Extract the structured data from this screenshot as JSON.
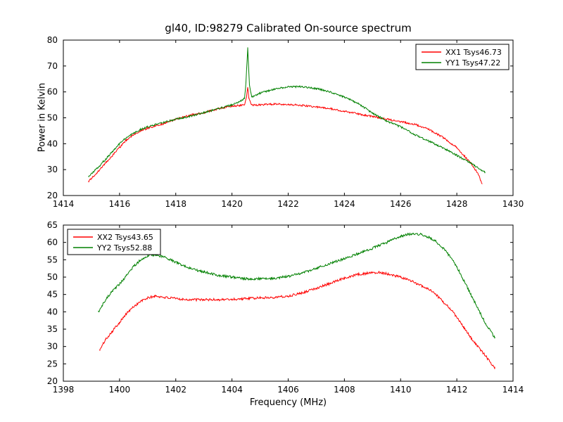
{
  "figure": {
    "background": "#ffffff",
    "title": "gl40, ID:98279 Calibrated On-source spectrum"
  },
  "chart_data": [
    {
      "type": "line",
      "name": "top-subplot",
      "title": "gl40, ID:98279 Calibrated On-source spectrum",
      "xlabel": "",
      "ylabel": "Power in Kelvin",
      "xlim": [
        1414,
        1430
      ],
      "ylim": [
        20,
        80
      ],
      "xticks": [
        1414,
        1416,
        1418,
        1420,
        1422,
        1424,
        1426,
        1428,
        1430
      ],
      "yticks": [
        20,
        30,
        40,
        50,
        60,
        70,
        80
      ],
      "grid": false,
      "legend": {
        "position": "upper right",
        "entries": [
          "XX1 Tsys46.73",
          "YY1 Tsys47.22"
        ]
      },
      "series": [
        {
          "name": "XX1 Tsys46.73",
          "color": "#ff0000",
          "points": [
            [
              1414.9,
              25.5
            ],
            [
              1415.0,
              26.5
            ],
            [
              1415.25,
              29.5
            ],
            [
              1415.5,
              32.5
            ],
            [
              1415.75,
              35.5
            ],
            [
              1416.0,
              38.5
            ],
            [
              1416.25,
              41.5
            ],
            [
              1416.5,
              43.5
            ],
            [
              1416.75,
              45.0
            ],
            [
              1417.0,
              46.0
            ],
            [
              1417.5,
              47.5
            ],
            [
              1418.0,
              49.5
            ],
            [
              1418.5,
              51.0
            ],
            [
              1419.0,
              52.0
            ],
            [
              1419.5,
              53.5
            ],
            [
              1420.0,
              54.5
            ],
            [
              1420.3,
              54.8
            ],
            [
              1420.45,
              55.0
            ],
            [
              1420.52,
              58.0
            ],
            [
              1420.56,
              62.0
            ],
            [
              1420.6,
              57.5
            ],
            [
              1420.7,
              55.0
            ],
            [
              1421.0,
              55.0
            ],
            [
              1421.5,
              55.3
            ],
            [
              1422.0,
              55.2
            ],
            [
              1422.5,
              54.8
            ],
            [
              1423.0,
              54.2
            ],
            [
              1423.5,
              53.5
            ],
            [
              1424.0,
              52.5
            ],
            [
              1424.5,
              51.5
            ],
            [
              1425.0,
              50.5
            ],
            [
              1425.5,
              49.5
            ],
            [
              1426.0,
              48.5
            ],
            [
              1426.5,
              47.5
            ],
            [
              1427.0,
              45.5
            ],
            [
              1427.25,
              44.0
            ],
            [
              1427.5,
              42.5
            ],
            [
              1427.75,
              40.5
            ],
            [
              1428.0,
              38.5
            ],
            [
              1428.25,
              35.5
            ],
            [
              1428.5,
              32.5
            ],
            [
              1428.75,
              28.5
            ],
            [
              1428.9,
              24.5
            ]
          ]
        },
        {
          "name": "YY1 Tsys47.22",
          "color": "#008000",
          "points": [
            [
              1414.9,
              27.5
            ],
            [
              1415.0,
              28.5
            ],
            [
              1415.25,
              31.0
            ],
            [
              1415.5,
              34.0
            ],
            [
              1415.75,
              37.0
            ],
            [
              1416.0,
              40.0
            ],
            [
              1416.25,
              42.5
            ],
            [
              1416.5,
              44.0
            ],
            [
              1416.75,
              45.5
            ],
            [
              1417.0,
              46.5
            ],
            [
              1417.5,
              48.0
            ],
            [
              1418.0,
              49.5
            ],
            [
              1418.5,
              50.5
            ],
            [
              1419.0,
              52.0
            ],
            [
              1419.5,
              53.5
            ],
            [
              1420.0,
              55.0
            ],
            [
              1420.3,
              56.5
            ],
            [
              1420.45,
              57.5
            ],
            [
              1420.5,
              64.0
            ],
            [
              1420.56,
              77.0
            ],
            [
              1420.62,
              63.0
            ],
            [
              1420.7,
              58.0
            ],
            [
              1421.0,
              59.5
            ],
            [
              1421.5,
              61.0
            ],
            [
              1422.0,
              62.0
            ],
            [
              1422.5,
              62.0
            ],
            [
              1423.0,
              61.3
            ],
            [
              1423.5,
              60.0
            ],
            [
              1424.0,
              58.0
            ],
            [
              1424.5,
              55.5
            ],
            [
              1425.0,
              51.8
            ],
            [
              1425.5,
              48.8
            ],
            [
              1426.0,
              46.5
            ],
            [
              1426.5,
              43.5
            ],
            [
              1427.0,
              41.0
            ],
            [
              1427.5,
              38.5
            ],
            [
              1428.0,
              35.5
            ],
            [
              1428.5,
              32.5
            ],
            [
              1429.0,
              29.0
            ]
          ]
        }
      ]
    },
    {
      "type": "line",
      "name": "bottom-subplot",
      "title": "",
      "xlabel": "Frequency (MHz)",
      "ylabel": "",
      "xlim": [
        1398,
        1414
      ],
      "ylim": [
        20,
        65
      ],
      "xticks": [
        1398,
        1400,
        1402,
        1404,
        1406,
        1408,
        1410,
        1412,
        1414
      ],
      "yticks": [
        20,
        25,
        30,
        35,
        40,
        45,
        50,
        55,
        60,
        65
      ],
      "grid": false,
      "legend": {
        "position": "upper left",
        "entries": [
          "XX2 Tsys43.65",
          "YY2 Tsys52.88"
        ]
      },
      "series": [
        {
          "name": "XX2 Tsys43.65",
          "color": "#ff0000",
          "points": [
            [
              1399.3,
              29.0
            ],
            [
              1399.5,
              32.0
            ],
            [
              1399.75,
              34.5
            ],
            [
              1400.0,
              37.0
            ],
            [
              1400.25,
              39.5
            ],
            [
              1400.5,
              41.5
            ],
            [
              1400.75,
              43.0
            ],
            [
              1401.0,
              44.0
            ],
            [
              1401.25,
              44.5
            ],
            [
              1401.5,
              44.3
            ],
            [
              1401.75,
              44.0
            ],
            [
              1402.0,
              43.8
            ],
            [
              1402.5,
              43.5
            ],
            [
              1403.0,
              43.5
            ],
            [
              1403.5,
              43.5
            ],
            [
              1404.0,
              43.6
            ],
            [
              1404.5,
              43.8
            ],
            [
              1405.0,
              44.0
            ],
            [
              1405.5,
              44.2
            ],
            [
              1406.0,
              44.5
            ],
            [
              1406.5,
              45.5
            ],
            [
              1407.0,
              46.8
            ],
            [
              1407.5,
              48.2
            ],
            [
              1408.0,
              49.8
            ],
            [
              1408.5,
              50.8
            ],
            [
              1409.0,
              51.3
            ],
            [
              1409.25,
              51.4
            ],
            [
              1409.5,
              51.0
            ],
            [
              1410.0,
              50.0
            ],
            [
              1410.5,
              48.5
            ],
            [
              1411.0,
              46.5
            ],
            [
              1411.25,
              45.0
            ],
            [
              1411.5,
              43.0
            ],
            [
              1411.75,
              41.0
            ],
            [
              1412.0,
              38.5
            ],
            [
              1412.25,
              35.5
            ],
            [
              1412.5,
              32.5
            ],
            [
              1412.75,
              30.0
            ],
            [
              1413.0,
              27.5
            ],
            [
              1413.35,
              23.8
            ]
          ]
        },
        {
          "name": "YY2 Tsys52.88",
          "color": "#008000",
          "points": [
            [
              1399.25,
              40.0
            ],
            [
              1399.5,
              43.5
            ],
            [
              1399.75,
              46.0
            ],
            [
              1400.0,
              48.0
            ],
            [
              1400.25,
              50.5
            ],
            [
              1400.5,
              53.0
            ],
            [
              1400.75,
              55.0
            ],
            [
              1401.0,
              56.2
            ],
            [
              1401.25,
              56.5
            ],
            [
              1401.5,
              56.0
            ],
            [
              1401.75,
              55.3
            ],
            [
              1402.0,
              54.3
            ],
            [
              1402.5,
              52.5
            ],
            [
              1403.0,
              51.5
            ],
            [
              1403.5,
              50.5
            ],
            [
              1404.0,
              50.0
            ],
            [
              1404.5,
              49.5
            ],
            [
              1405.0,
              49.5
            ],
            [
              1405.5,
              49.7
            ],
            [
              1406.0,
              50.2
            ],
            [
              1406.5,
              51.2
            ],
            [
              1407.0,
              52.5
            ],
            [
              1407.5,
              54.0
            ],
            [
              1408.0,
              55.3
            ],
            [
              1408.5,
              56.8
            ],
            [
              1409.0,
              58.3
            ],
            [
              1409.5,
              60.0
            ],
            [
              1410.0,
              61.8
            ],
            [
              1410.25,
              62.3
            ],
            [
              1410.5,
              62.5
            ],
            [
              1410.75,
              62.3
            ],
            [
              1411.0,
              61.5
            ],
            [
              1411.25,
              60.3
            ],
            [
              1411.5,
              58.5
            ],
            [
              1411.75,
              56.0
            ],
            [
              1412.0,
              53.0
            ],
            [
              1412.25,
              49.0
            ],
            [
              1412.5,
              45.0
            ],
            [
              1412.75,
              41.0
            ],
            [
              1413.0,
              37.0
            ],
            [
              1413.35,
              32.5
            ]
          ]
        }
      ]
    }
  ]
}
